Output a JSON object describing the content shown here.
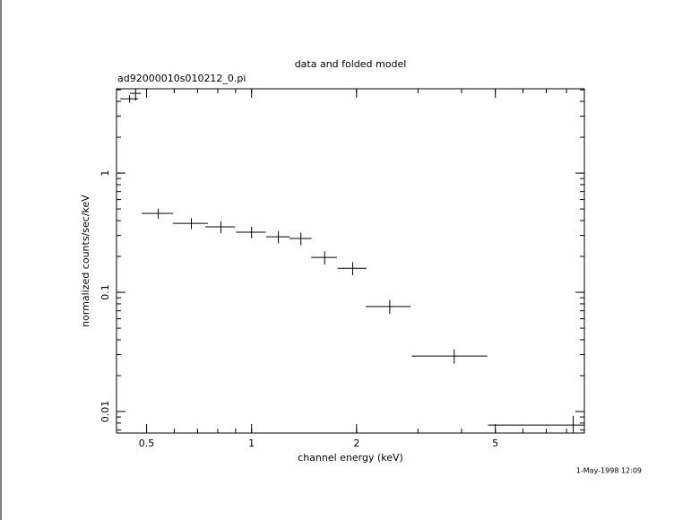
{
  "chart_data": {
    "type": "scatter",
    "title": "data and folded model",
    "subtitle": "ad92000010s010212_0.pi",
    "x_label": "channel energy (keV)",
    "y_label": "normalized counts/sec/keV",
    "timestamp": "1-May-1998 12:09",
    "x_log": true,
    "y_log": true,
    "xlim": [
      0.41,
      9
    ],
    "ylim": [
      0.0066,
      5.1
    ],
    "xticks": [
      0.5,
      1,
      2,
      5
    ],
    "yticks": [
      0.01,
      0.1,
      1
    ],
    "series": [
      {
        "color": "#000000",
        "x": [
          0.447,
          0.465,
          0.54,
          0.672,
          0.817,
          1.0,
          1.194,
          1.385,
          1.62,
          1.95,
          2.49,
          3.81,
          8.36
        ],
        "xerr": [
          0.0265,
          0.017,
          0.056,
          0.077,
          0.081,
          0.098,
          0.093,
          0.102,
          0.138,
          0.185,
          0.365,
          0.93,
          3.6
        ],
        "values": [
          4.2,
          4.67,
          0.459,
          0.379,
          0.354,
          0.319,
          0.292,
          0.283,
          0.196,
          0.159,
          0.076,
          0.0292,
          0.0077
        ],
        "yerr": [
          0.3,
          0.6,
          0.045,
          0.04,
          0.04,
          0.035,
          0.035,
          0.035,
          0.025,
          0.02,
          0.01,
          0.004,
          0.0015
        ]
      }
    ]
  }
}
